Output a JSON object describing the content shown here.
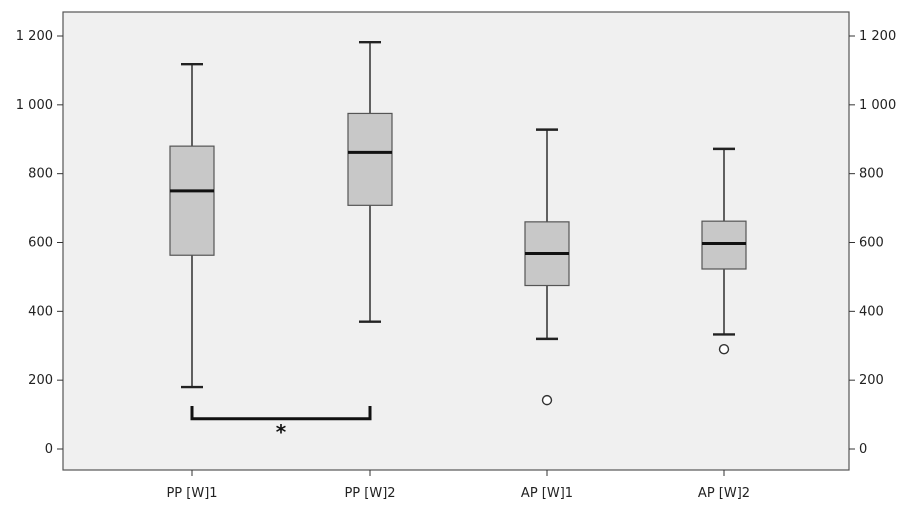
{
  "chart_data": {
    "type": "boxplot",
    "title": "",
    "xlabel": "",
    "ylabel": "",
    "categories": [
      "PP [W]1",
      "PP [W]2",
      "AP [W]1",
      "AP [W]2"
    ],
    "ylim": [
      -50,
      1260
    ],
    "yticks": [
      0,
      200,
      400,
      600,
      800,
      1000,
      1200
    ],
    "ytick_labels": [
      "0",
      "200",
      "400",
      "600",
      "800",
      "1 000",
      "1 200"
    ],
    "grid": false,
    "dual_y_axis": true,
    "box_fill_color": "#c8c8c8",
    "plot_background_color": "#f0f0f0",
    "series": [
      {
        "category": "PP [W]1",
        "min": 180,
        "q1": 563,
        "median": 750,
        "q3": 880,
        "max": 1118,
        "outliers": []
      },
      {
        "category": "PP [W]2",
        "min": 370,
        "q1": 708,
        "median": 862,
        "q3": 975,
        "max": 1182,
        "outliers": []
      },
      {
        "category": "AP [W]1",
        "min": 320,
        "q1": 475,
        "median": 568,
        "q3": 660,
        "max": 928,
        "outliers": [
          142
        ]
      },
      {
        "category": "AP [W]2",
        "min": 333,
        "q1": 523,
        "median": 597,
        "q3": 662,
        "max": 872,
        "outliers": [
          290
        ]
      }
    ],
    "annotations": [
      {
        "type": "significance-bracket",
        "from": "PP [W]1",
        "to": "PP [W]2",
        "y_low": 88,
        "y_high": 125,
        "label": "*",
        "label_y": 52
      }
    ]
  }
}
